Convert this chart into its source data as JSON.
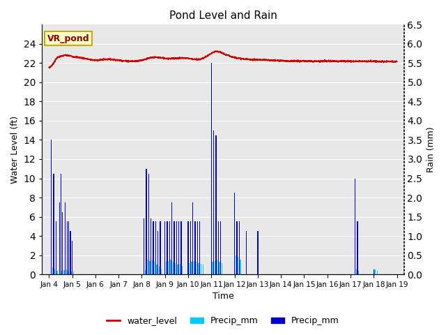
{
  "title": "Pond Level and Rain",
  "xlabel": "Time",
  "ylabel_left": "Water Level (ft)",
  "ylabel_right": "Rain (mm)",
  "annotation": "VR_pond",
  "ylim_left": [
    0,
    26
  ],
  "ylim_right": [
    0,
    6.5
  ],
  "yticks_left": [
    0,
    2,
    4,
    6,
    8,
    10,
    12,
    14,
    16,
    18,
    20,
    22,
    24
  ],
  "yticks_right": [
    0.0,
    0.5,
    1.0,
    1.5,
    2.0,
    2.5,
    3.0,
    3.5,
    4.0,
    4.5,
    5.0,
    5.5,
    6.0,
    6.5
  ],
  "water_level_color": "#cc0000",
  "precip_cyan_color": "#00ccff",
  "precip_blue_color": "#0000cc",
  "bg_color": "#e8e8e8",
  "annotation_bg": "#ffffcc",
  "annotation_border": "#ccaa00",
  "legend_labels": [
    "water_level",
    "Precip_mm",
    "Precip_mm"
  ],
  "xlim": [
    -0.3,
    15.3
  ],
  "xtick_positions": [
    0,
    1,
    2,
    3,
    4,
    5,
    6,
    7,
    8,
    9,
    10,
    11,
    12,
    13,
    14,
    15
  ],
  "xtick_labels": [
    "Jan 4",
    "Jan 5",
    "Jan 6",
    "Jan 7",
    "Jan 8",
    "Jan 9",
    "Jan 10",
    "Jan 11",
    "Jan 12",
    "Jan 13",
    "Jan 14",
    "Jan 15",
    "Jan 16",
    "Jan 17",
    "Jan 18",
    "Jan 19"
  ],
  "rain_scale": 4.0,
  "cyan_events": [
    [
      0.15,
      0.7
    ],
    [
      0.25,
      0.5
    ],
    [
      0.35,
      0.4
    ],
    [
      0.55,
      0.4
    ],
    [
      0.65,
      0.45
    ],
    [
      0.75,
      0.5
    ],
    [
      0.82,
      0.4
    ],
    [
      0.9,
      0.35
    ],
    [
      0.95,
      0.3
    ],
    [
      1.05,
      0.3
    ],
    [
      4.15,
      0.45
    ],
    [
      4.25,
      1.5
    ],
    [
      4.35,
      1.4
    ],
    [
      4.45,
      1.5
    ],
    [
      4.55,
      1.3
    ],
    [
      4.65,
      1.0
    ],
    [
      4.75,
      0.8
    ],
    [
      4.85,
      0.6
    ],
    [
      5.05,
      1.3
    ],
    [
      5.15,
      1.4
    ],
    [
      5.25,
      1.5
    ],
    [
      5.35,
      1.3
    ],
    [
      5.45,
      1.2
    ],
    [
      5.55,
      1.0
    ],
    [
      5.65,
      1.1
    ],
    [
      5.75,
      0.9
    ],
    [
      6.05,
      1.2
    ],
    [
      6.15,
      1.3
    ],
    [
      6.25,
      1.4
    ],
    [
      6.35,
      1.3
    ],
    [
      6.45,
      1.2
    ],
    [
      6.55,
      1.1
    ],
    [
      6.65,
      1.0
    ],
    [
      7.05,
      1.3
    ],
    [
      7.15,
      1.4
    ],
    [
      7.25,
      1.5
    ],
    [
      7.35,
      1.3
    ],
    [
      7.45,
      1.2
    ],
    [
      8.05,
      2.0
    ],
    [
      8.15,
      1.8
    ],
    [
      8.25,
      1.5
    ],
    [
      13.25,
      0.5
    ],
    [
      13.35,
      0.4
    ],
    [
      14.05,
      0.5
    ],
    [
      14.15,
      0.4
    ]
  ],
  "blue_events": [
    [
      0.1,
      14.0
    ],
    [
      0.2,
      10.5
    ],
    [
      0.3,
      5.5
    ],
    [
      0.45,
      7.5
    ],
    [
      0.52,
      10.5
    ],
    [
      0.58,
      6.5
    ],
    [
      0.7,
      7.5
    ],
    [
      0.78,
      5.5
    ],
    [
      0.85,
      5.5
    ],
    [
      0.92,
      4.5
    ],
    [
      1.0,
      3.5
    ],
    [
      4.1,
      5.8
    ],
    [
      4.2,
      11.0
    ],
    [
      4.3,
      10.5
    ],
    [
      4.4,
      5.8
    ],
    [
      4.5,
      5.5
    ],
    [
      4.6,
      5.5
    ],
    [
      4.7,
      4.5
    ],
    [
      4.8,
      5.5
    ],
    [
      5.0,
      5.5
    ],
    [
      5.1,
      5.5
    ],
    [
      5.2,
      5.5
    ],
    [
      5.3,
      7.5
    ],
    [
      5.4,
      5.5
    ],
    [
      5.5,
      5.5
    ],
    [
      5.6,
      5.5
    ],
    [
      5.7,
      5.5
    ],
    [
      6.0,
      5.5
    ],
    [
      6.1,
      5.5
    ],
    [
      6.2,
      7.5
    ],
    [
      6.3,
      5.5
    ],
    [
      6.4,
      5.5
    ],
    [
      6.5,
      5.5
    ],
    [
      7.0,
      22.0
    ],
    [
      7.1,
      15.0
    ],
    [
      7.2,
      14.5
    ],
    [
      7.3,
      5.5
    ],
    [
      7.4,
      5.5
    ],
    [
      8.0,
      8.5
    ],
    [
      8.1,
      5.5
    ],
    [
      8.2,
      5.5
    ],
    [
      8.5,
      4.5
    ],
    [
      9.0,
      4.5
    ],
    [
      13.2,
      10.0
    ],
    [
      13.3,
      5.5
    ],
    [
      14.0,
      0.5
    ]
  ],
  "wl_x": [
    0.0,
    0.1,
    0.2,
    0.3,
    0.5,
    0.7,
    1.0,
    1.5,
    2.0,
    2.5,
    3.0,
    3.5,
    4.0,
    4.3,
    4.6,
    5.0,
    5.5,
    6.0,
    6.5,
    7.0,
    7.2,
    7.5,
    8.0,
    8.5,
    9.0,
    10.0,
    11.0,
    12.0,
    13.0,
    14.0,
    15.0
  ],
  "wl_y": [
    21.5,
    21.7,
    22.0,
    22.4,
    22.7,
    22.8,
    22.7,
    22.5,
    22.3,
    22.4,
    22.3,
    22.2,
    22.3,
    22.5,
    22.6,
    22.5,
    22.5,
    22.5,
    22.4,
    23.0,
    23.2,
    23.0,
    22.6,
    22.4,
    22.35,
    22.25,
    22.2,
    22.2,
    22.2,
    22.18,
    22.15
  ]
}
